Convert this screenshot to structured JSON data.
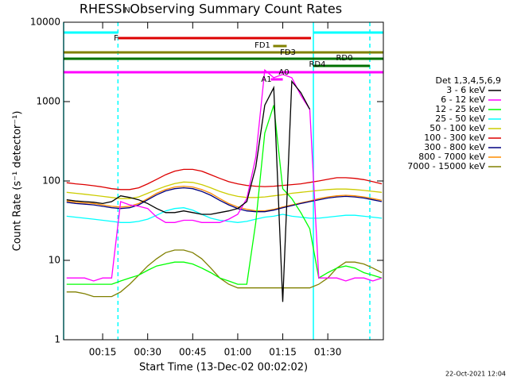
{
  "chart_data": {
    "type": "line",
    "title": "RHESSI Observing Summary Count Rates",
    "xlabel": "Start Time (13-Dec-02 00:02:02)",
    "ylabel": "Count Rate (s⁻¹ detector⁻¹)",
    "timestamp": "22-Oct-2021 12:04",
    "legend_title": "Det 1,3,4,5,6,9",
    "log_y": true,
    "xlim": [
      2,
      108.5
    ],
    "ylim": [
      1,
      10000
    ],
    "xticks": [
      {
        "value": 15,
        "label": "00:15"
      },
      {
        "value": 30,
        "label": "00:30"
      },
      {
        "value": 45,
        "label": "00:45"
      },
      {
        "value": 60,
        "label": "01:00"
      },
      {
        "value": 75,
        "label": "01:15"
      },
      {
        "value": 90,
        "label": "01:30"
      }
    ],
    "yticks": [
      1,
      10,
      100,
      1000,
      10000
    ],
    "x": [
      3,
      6,
      9,
      12,
      15,
      18,
      21,
      24,
      27,
      30,
      33,
      36,
      39,
      42,
      45,
      48,
      51,
      54,
      57,
      60,
      63,
      66,
      69,
      72,
      75,
      78,
      81,
      84,
      87,
      90,
      93,
      96,
      99,
      102,
      105,
      108
    ],
    "series": [
      {
        "name": "3 - 6 keV",
        "color": "#000000",
        "values": [
          58,
          56,
          55,
          54,
          52,
          55,
          65,
          62,
          58,
          52,
          45,
          40,
          40,
          42,
          40,
          38,
          38,
          40,
          42,
          45,
          55,
          150,
          900,
          1500,
          3,
          1800,
          1300,
          800,
          null,
          null,
          null,
          null,
          null,
          null,
          null,
          null
        ]
      },
      {
        "name": "6 - 12 keV",
        "color": "#ff00ff",
        "values": [
          6,
          6,
          6,
          5.5,
          6,
          6,
          55,
          50,
          48,
          45,
          35,
          30,
          30,
          32,
          32,
          30,
          30,
          30,
          33,
          38,
          60,
          200,
          2500,
          2000,
          2200,
          2000,
          1200,
          800,
          6,
          6,
          6,
          5.5,
          6,
          6,
          5.5,
          6
        ]
      },
      {
        "name": "12 - 25 keV",
        "color": "#00ff00",
        "values": [
          5,
          5,
          5,
          5,
          5,
          5,
          5.5,
          6,
          6.5,
          7.5,
          8.5,
          9,
          9.5,
          9.5,
          9,
          8,
          7,
          6,
          5.5,
          5,
          5,
          30,
          400,
          900,
          80,
          60,
          40,
          25,
          6,
          7,
          8,
          8.5,
          8,
          7,
          6.5,
          6
        ]
      },
      {
        "name": "25 - 50 keV",
        "color": "#00ffff",
        "values": [
          36,
          35,
          34,
          33,
          32,
          31,
          30,
          30,
          31,
          33,
          37,
          42,
          45,
          46,
          43,
          38,
          34,
          32,
          31,
          30,
          31,
          33,
          35,
          36,
          38,
          36,
          35,
          34,
          34,
          35,
          36,
          37,
          37,
          36,
          35,
          34
        ]
      },
      {
        "name": "50 - 100 keV",
        "color": "#cccc00",
        "values": [
          72,
          70,
          68,
          66,
          64,
          62,
          60,
          60,
          63,
          70,
          78,
          86,
          93,
          97,
          96,
          90,
          82,
          74,
          68,
          64,
          62,
          62,
          63,
          65,
          67,
          70,
          72,
          74,
          76,
          78,
          79,
          79,
          78,
          76,
          74,
          72
        ]
      },
      {
        "name": "100 - 300 keV",
        "color": "#dd0000",
        "values": [
          95,
          92,
          90,
          87,
          84,
          80,
          78,
          78,
          82,
          92,
          105,
          120,
          133,
          140,
          140,
          133,
          120,
          108,
          98,
          92,
          88,
          86,
          85,
          86,
          88,
          90,
          92,
          96,
          100,
          105,
          110,
          110,
          108,
          104,
          98,
          92
        ]
      },
      {
        "name": "300 - 800 keV",
        "color": "#000080",
        "values": [
          54,
          52,
          51,
          50,
          48,
          46,
          45,
          46,
          50,
          58,
          67,
          75,
          80,
          82,
          80,
          74,
          66,
          57,
          50,
          45,
          42,
          41,
          41,
          43,
          46,
          49,
          52,
          55,
          58,
          61,
          63,
          64,
          63,
          61,
          58,
          55
        ]
      },
      {
        "name": "800 - 7000 keV",
        "color": "#ff8c00",
        "values": [
          56,
          54,
          53,
          52,
          50,
          48,
          47,
          48,
          52,
          60,
          70,
          78,
          84,
          86,
          84,
          78,
          70,
          60,
          52,
          47,
          44,
          42,
          42,
          44,
          47,
          50,
          53,
          56,
          60,
          63,
          65,
          66,
          65,
          63,
          60,
          57
        ]
      },
      {
        "name": "7000 - 15000 keV",
        "color": "#808000",
        "values": [
          4,
          4,
          3.8,
          3.5,
          3.5,
          3.5,
          4,
          5,
          6.5,
          8.5,
          10.5,
          12.5,
          13.5,
          13.5,
          12.5,
          10.5,
          8,
          6,
          5,
          4.5,
          4.5,
          4.5,
          4.5,
          4.5,
          4.5,
          4.5,
          4.5,
          4.5,
          5,
          6,
          8,
          9.5,
          9.5,
          9,
          8,
          7
        ]
      }
    ],
    "annotations": [
      {
        "label": "N",
        "color": "#00ffff",
        "spans": [
          [
            2,
            20.1
          ],
          [
            85.2,
            108.5
          ]
        ]
      },
      {
        "label": "F",
        "color": "#dd0000",
        "spans": [
          [
            20.1,
            84.4
          ]
        ]
      },
      {
        "label": "FD1",
        "color": "#808000",
        "spans": [
          [
            71.8,
            76.3
          ]
        ]
      },
      {
        "label": "FD3",
        "color": "#808000",
        "spans": [
          [
            2,
            108.5
          ]
        ]
      },
      {
        "label": "RD0",
        "color": "#007000",
        "spans": [
          [
            2,
            108.5
          ]
        ]
      },
      {
        "label": "RD4",
        "color": "#007000",
        "spans": [
          [
            85.2,
            104
          ]
        ]
      },
      {
        "label": "A0",
        "color": "#ff00ff",
        "spans": [
          [
            2,
            108.5
          ]
        ]
      },
      {
        "label": "A1",
        "color": "#ff00ff",
        "spans": [
          [
            71,
            75
          ]
        ]
      }
    ],
    "vlines": [
      {
        "x": 2,
        "dashed": false
      },
      {
        "x": 20.1,
        "dashed": true
      },
      {
        "x": 85.2,
        "dashed": false
      },
      {
        "x": 104,
        "dashed": true
      }
    ],
    "vline_color": "#00ffff"
  }
}
